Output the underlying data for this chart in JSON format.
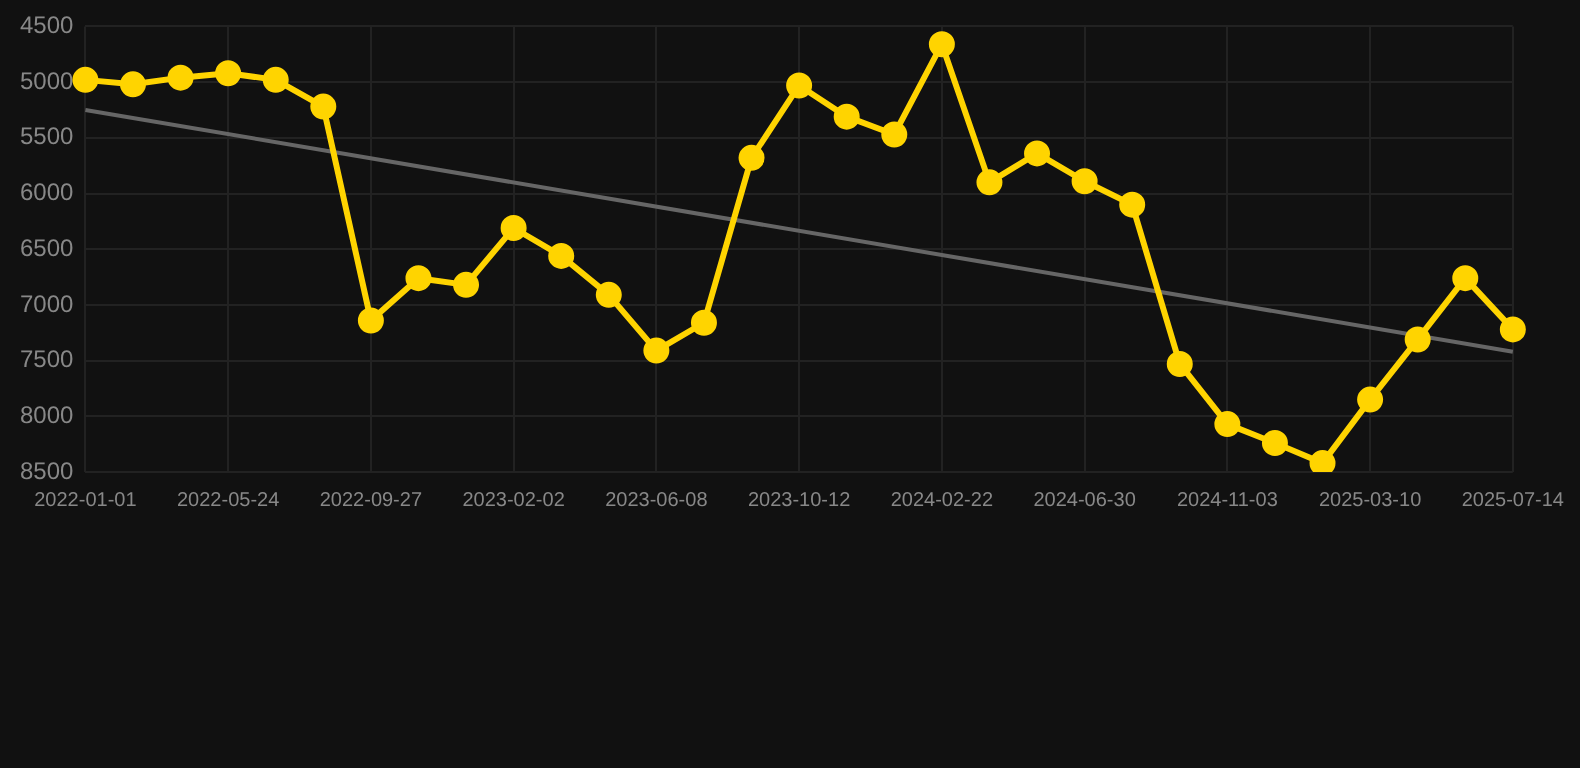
{
  "chart_data": {
    "type": "line",
    "categories": [
      "2022-01-01",
      null,
      null,
      "2022-05-24",
      null,
      null,
      "2022-09-27",
      null,
      null,
      "2023-02-02",
      null,
      null,
      "2023-06-08",
      null,
      null,
      "2023-10-12",
      null,
      null,
      "2024-02-22",
      null,
      null,
      "2024-06-30",
      null,
      null,
      "2024-11-03",
      null,
      null,
      "2025-03-10",
      null,
      null,
      "2025-07-14"
    ],
    "series": [
      {
        "color": "#ffd400",
        "marker": "circle",
        "values": [
          4980,
          5020,
          4960,
          4920,
          4980,
          5220,
          7140,
          6760,
          6820,
          6310,
          6560,
          6910,
          7410,
          7160,
          5680,
          5030,
          5310,
          5470,
          4660,
          5900,
          5640,
          5890,
          6100,
          7530,
          8070,
          8240,
          8420,
          7850,
          7310,
          6760,
          7220
        ]
      },
      {
        "color": "#666666",
        "marker": "none",
        "values": [
          5250,
          null,
          null,
          null,
          null,
          null,
          null,
          null,
          null,
          null,
          null,
          null,
          null,
          null,
          null,
          null,
          null,
          null,
          null,
          null,
          null,
          null,
          null,
          null,
          null,
          null,
          null,
          null,
          null,
          null,
          7420
        ]
      }
    ],
    "ylim": [
      8500,
      4500
    ],
    "yticks": [
      4500,
      5000,
      5500,
      6000,
      6500,
      7000,
      7500,
      8000,
      8500
    ],
    "grid": true,
    "legend": false
  }
}
